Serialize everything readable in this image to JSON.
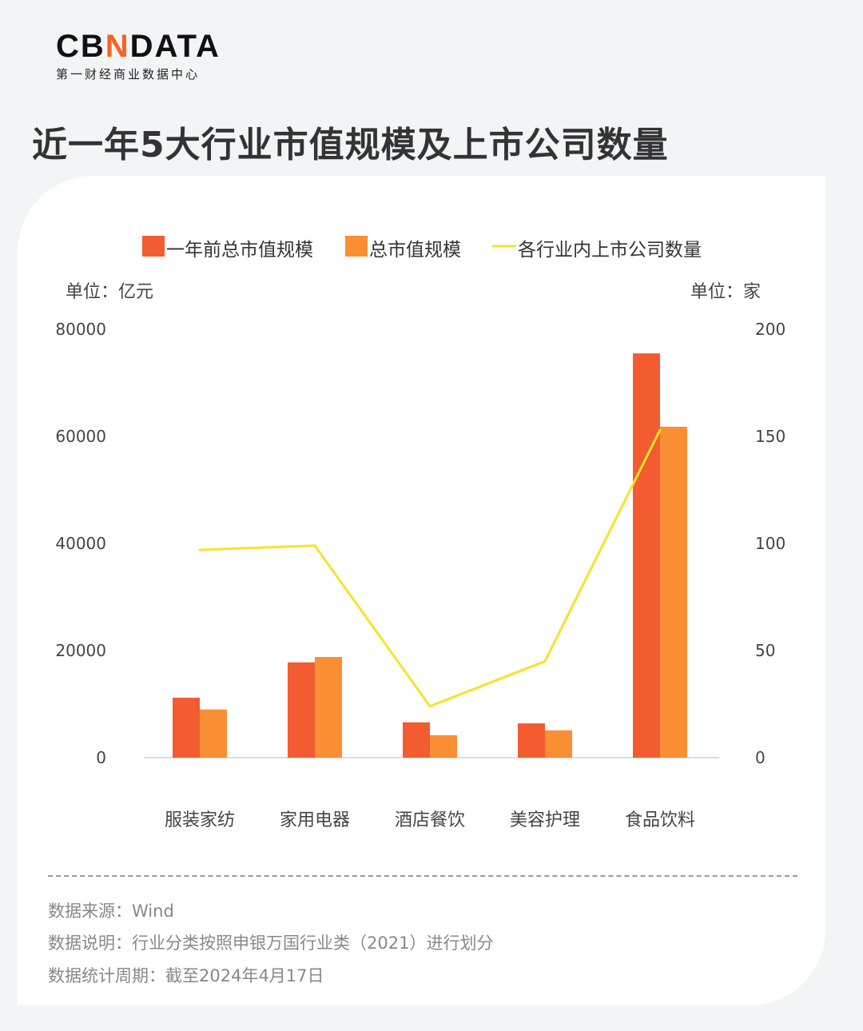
{
  "logo": {
    "brand": "CBNDATA",
    "subtitle": "第一财经商业数据中心"
  },
  "title": "近一年5大行业市值规模及上市公司数量",
  "chart_data": {
    "type": "bar",
    "categories": [
      "服装家纺",
      "家用电器",
      "酒店餐饮",
      "美容护理",
      "食品饮料"
    ],
    "series": [
      {
        "name": "一年前总市值规模",
        "type": "bar",
        "axis": "left",
        "color": "#f25c30",
        "values": [
          11200,
          17800,
          6600,
          6400,
          75500
        ]
      },
      {
        "name": "总市值规模",
        "type": "bar",
        "axis": "left",
        "color": "#f98e33",
        "values": [
          9000,
          18800,
          4200,
          5100,
          61800
        ]
      },
      {
        "name": "各行业内上市公司数量",
        "type": "line",
        "axis": "right",
        "color": "#f5e42a",
        "values": [
          97,
          99,
          24,
          45,
          153
        ]
      }
    ],
    "left_axis": {
      "unit_label": "单位：亿元",
      "ylim": [
        0,
        80000
      ],
      "ticks": [
        0,
        20000,
        40000,
        60000,
        80000
      ]
    },
    "right_axis": {
      "unit_label": "单位：家",
      "ylim": [
        0,
        200
      ],
      "ticks": [
        0,
        50,
        100,
        150,
        200
      ]
    },
    "legend": "top",
    "grid": false
  },
  "footer": {
    "source": "数据来源：Wind",
    "note": "数据说明：行业分类按照申银万国行业类（2021）进行划分",
    "period": "数据统计周期：截至2024年4月17日"
  }
}
